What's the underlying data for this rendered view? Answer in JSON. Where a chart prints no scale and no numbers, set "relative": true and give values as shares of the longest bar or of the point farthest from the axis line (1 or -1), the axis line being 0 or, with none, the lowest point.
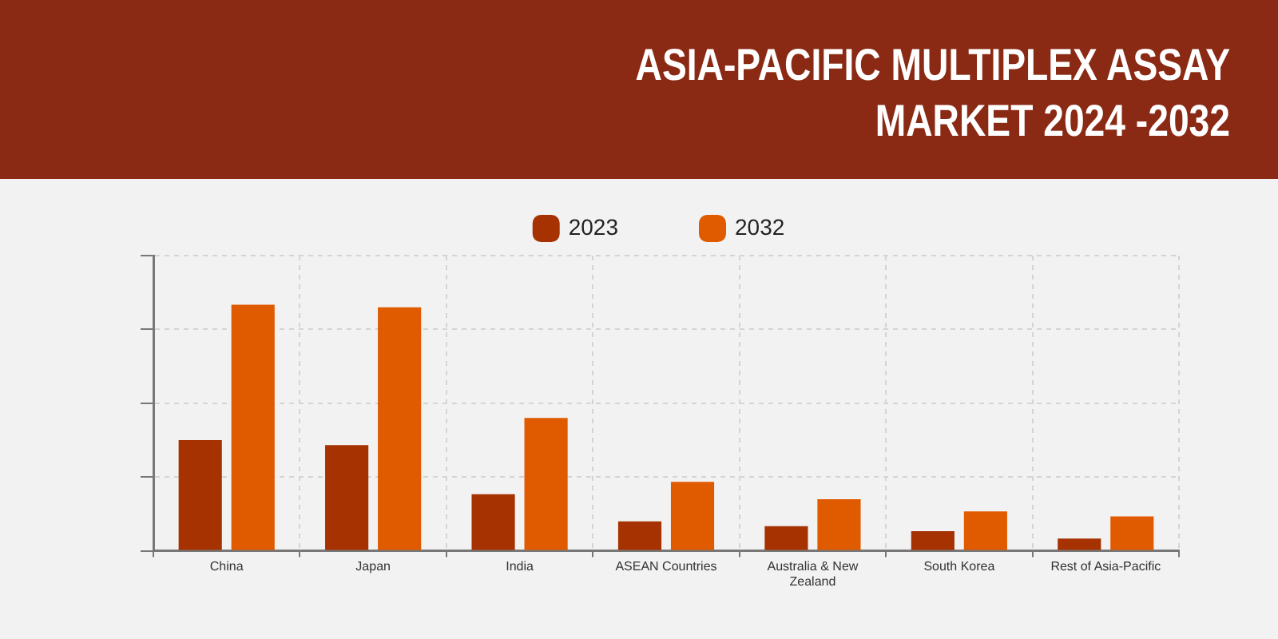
{
  "chart_data": {
    "type": "bar",
    "title": "ASIA-PACIFIC MULTIPLEX ASSAY MARKET 2024 -2032",
    "categories": [
      "China",
      "Japan",
      "India",
      "ASEAN Countries",
      "Australia & New Zealand",
      "South Korea",
      "Rest of Asia-Pacific"
    ],
    "series": [
      {
        "name": "2023",
        "color": "#a53200",
        "values": [
          0.45,
          0.43,
          0.23,
          0.12,
          0.1,
          0.08,
          0.05
        ]
      },
      {
        "name": "2032",
        "color": "#e05a00",
        "values": [
          1,
          0.99,
          0.54,
          0.28,
          0.21,
          0.16,
          0.14
        ]
      }
    ],
    "relative": true,
    "legend": "top",
    "grid": true
  }
}
